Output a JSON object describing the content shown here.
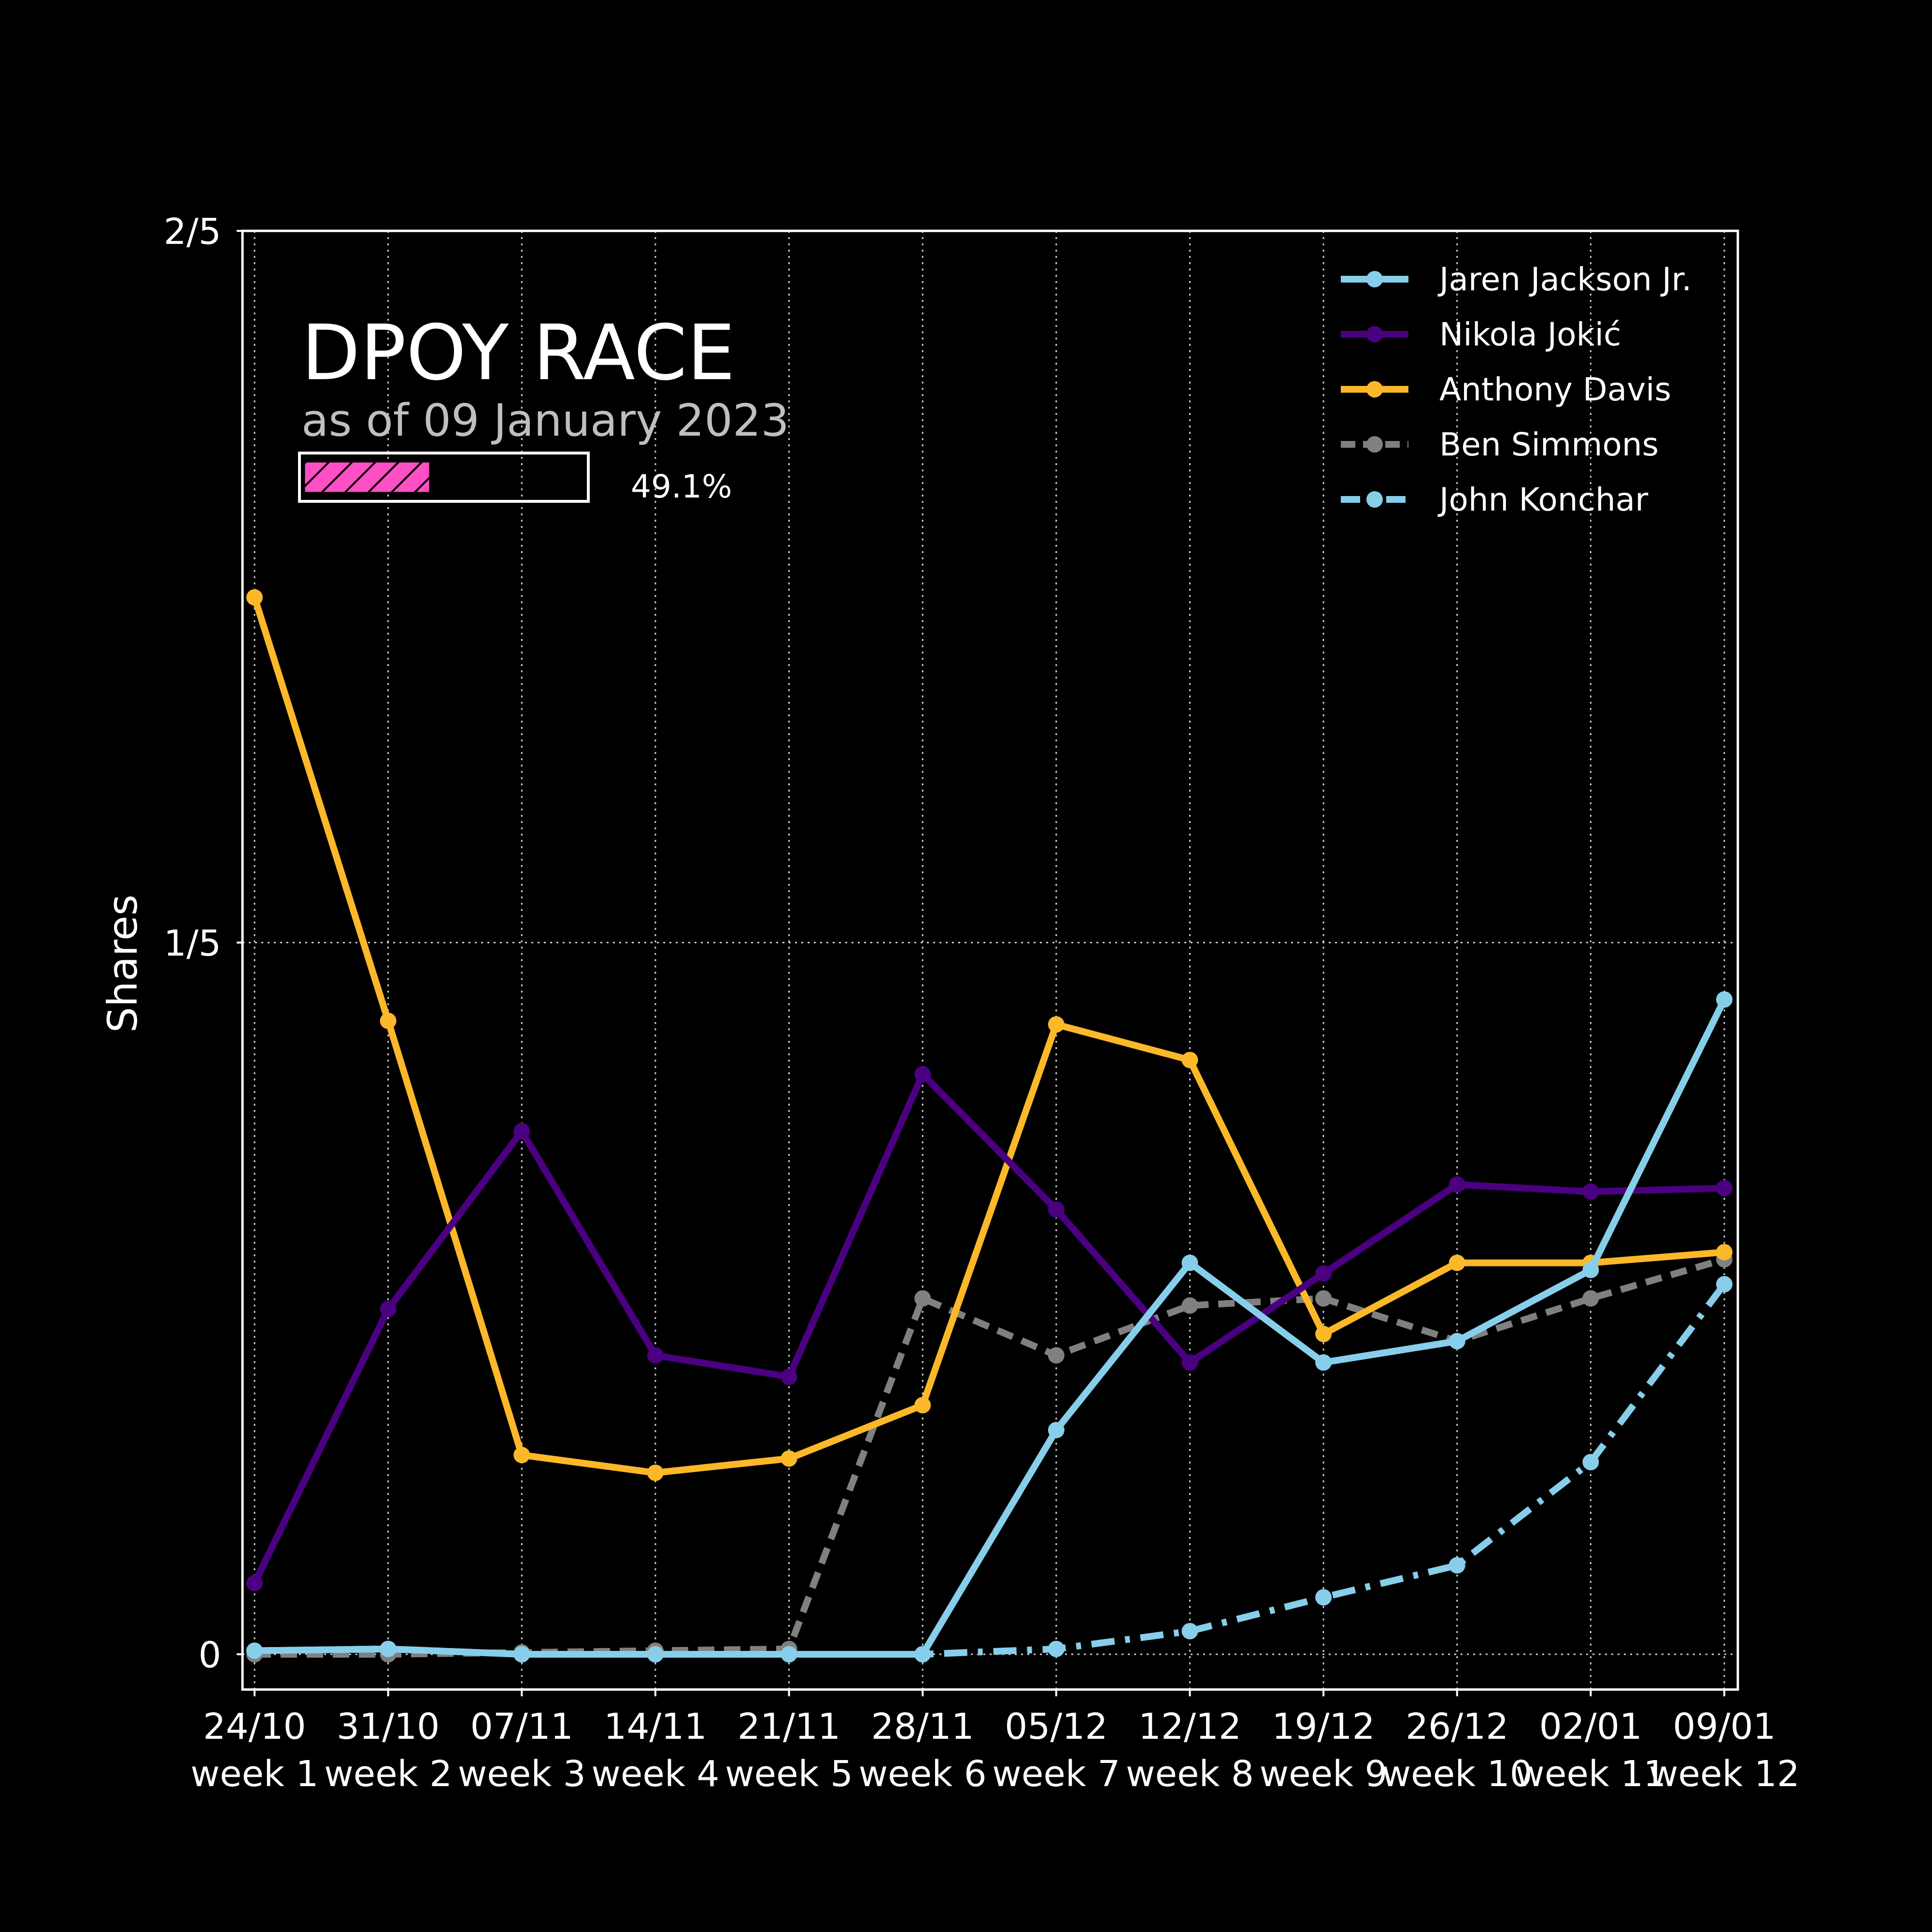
{
  "chart_data": {
    "type": "line",
    "title": "DPOY RACE",
    "subtitle": "as of 09 January 2023",
    "progress": {
      "value": 0.491,
      "label": "49.1%",
      "color": "#ff4fc4"
    },
    "ylabel": "Shares",
    "ylim": [
      -0.01,
      0.4
    ],
    "yticks": [
      {
        "value": 0,
        "label": "0"
      },
      {
        "value": 0.2,
        "label": "1/5"
      },
      {
        "value": 0.4,
        "label": "2/5"
      }
    ],
    "categories": [
      {
        "date": "24/10",
        "week": "week 1"
      },
      {
        "date": "31/10",
        "week": "week 2"
      },
      {
        "date": "07/11",
        "week": "week 3"
      },
      {
        "date": "14/11",
        "week": "week 4"
      },
      {
        "date": "21/11",
        "week": "week 5"
      },
      {
        "date": "28/11",
        "week": "week 6"
      },
      {
        "date": "05/12",
        "week": "week 7"
      },
      {
        "date": "12/12",
        "week": "week 8"
      },
      {
        "date": "19/12",
        "week": "week 9"
      },
      {
        "date": "26/12",
        "week": "week 10"
      },
      {
        "date": "02/01",
        "week": "week 11"
      },
      {
        "date": "09/01",
        "week": "week 12"
      }
    ],
    "grid": true,
    "legend_position": "top-right",
    "series": [
      {
        "name": "Jaren Jackson Jr.",
        "color": "#87ceeb",
        "dash": "solid",
        "values": [
          0.001,
          0.0015,
          0.0,
          0.0,
          0.0,
          0.0,
          0.063,
          0.11,
          0.082,
          0.088,
          0.108,
          0.184
        ]
      },
      {
        "name": "Nikola Jokić",
        "color": "#4b0082",
        "dash": "solid",
        "values": [
          0.02,
          0.097,
          0.147,
          0.084,
          0.078,
          0.163,
          0.125,
          0.082,
          0.107,
          0.132,
          0.13,
          0.131
        ]
      },
      {
        "name": "Anthony Davis",
        "color": "#fbb829",
        "dash": "solid",
        "values": [
          0.297,
          0.178,
          0.056,
          0.051,
          0.055,
          0.07,
          0.177,
          0.167,
          0.09,
          0.11,
          0.11,
          0.113
        ]
      },
      {
        "name": "Ben Simmons",
        "color": "#808080",
        "dash": "dashed",
        "values": [
          0.0,
          0.0,
          0.0005,
          0.001,
          0.0015,
          0.1,
          0.084,
          0.098,
          0.1,
          0.088,
          0.1,
          0.111
        ]
      },
      {
        "name": "John Konchar",
        "color": "#87ceeb",
        "dash": "dashdot",
        "values": [
          0.001,
          0.0015,
          0.0,
          0.0,
          0.0,
          0.0,
          0.0015,
          0.0065,
          0.016,
          0.025,
          0.054,
          0.104
        ]
      }
    ]
  }
}
